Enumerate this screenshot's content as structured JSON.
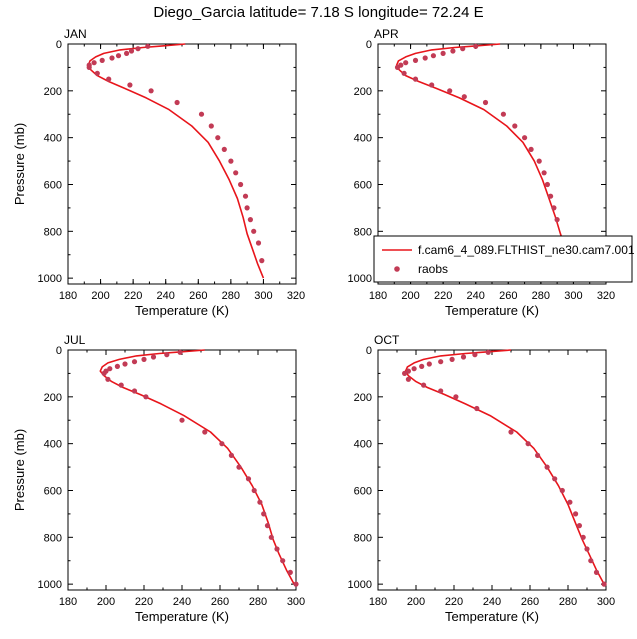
{
  "title": "Diego_Garcia  latitude= 7.18 S longitude= 72.24 E",
  "legend": {
    "model_label": "f.cam6_4_089.FLTHIST_ne30.cam7.001",
    "obs_label": "raobs"
  },
  "colors": {
    "model": "#e8151b",
    "obs": "#c23b55"
  },
  "chart_data": [
    {
      "type": "line",
      "panel": "JAN",
      "xlabel": "Temperature (K)",
      "ylabel": "Pressure (mb)",
      "xlim": [
        180,
        320
      ],
      "ylim": [
        1025,
        0
      ],
      "xticks": [
        180,
        200,
        220,
        240,
        260,
        280,
        300,
        320
      ],
      "yticks": [
        0,
        200,
        400,
        600,
        800,
        1000
      ],
      "series": [
        {
          "name": "f.cam6_4_089.FLTHIST_ne30.cam7.001",
          "style": "line",
          "x": [
            252,
            238,
            226,
            212,
            202,
            197,
            193.5,
            192.5,
            194,
            198,
            205,
            215,
            228,
            242,
            256,
            266,
            273,
            279,
            284,
            287.5,
            290,
            293,
            296.5,
            300
          ],
          "y": [
            0,
            8,
            15,
            25,
            40,
            55,
            72,
            90,
            110,
            135,
            160,
            190,
            230,
            280,
            350,
            420,
            500,
            580,
            660,
            740,
            810,
            870,
            940,
            1000
          ]
        },
        {
          "name": "raobs",
          "style": "markers",
          "x": [
            229,
            223,
            219,
            216,
            211,
            207,
            201,
            196,
            193,
            193,
            198,
            205,
            218,
            231,
            247,
            262,
            268,
            272,
            276,
            280,
            283,
            286,
            289,
            290,
            292,
            294,
            297,
            299
          ],
          "y": [
            10,
            20,
            30,
            40,
            50,
            60,
            70,
            80,
            90,
            100,
            125,
            150,
            175,
            200,
            250,
            300,
            350,
            400,
            450,
            500,
            550,
            600,
            650,
            700,
            750,
            800,
            850,
            925
          ]
        }
      ]
    },
    {
      "type": "line",
      "panel": "APR",
      "xlabel": "Temperature (K)",
      "ylabel": "",
      "xlim": [
        180,
        320
      ],
      "ylim": [
        1025,
        0
      ],
      "xticks": [
        180,
        200,
        220,
        240,
        260,
        280,
        300,
        320
      ],
      "yticks": [
        0,
        200,
        400,
        600,
        800,
        1000
      ],
      "series": [
        {
          "name": "f.cam6_4_089.FLTHIST_ne30.cam7.001",
          "style": "line",
          "x": [
            255,
            240,
            227,
            213,
            203,
            197,
            192.5,
            191.5,
            193,
            197,
            205,
            216,
            230,
            245,
            259,
            269,
            276,
            281,
            285,
            289,
            292,
            295,
            298,
            301
          ],
          "y": [
            0,
            8,
            15,
            25,
            40,
            55,
            72,
            90,
            110,
            135,
            160,
            190,
            230,
            280,
            350,
            420,
            500,
            580,
            660,
            740,
            810,
            870,
            940,
            1000
          ]
        },
        {
          "name": "raobs",
          "style": "markers",
          "x": [
            240,
            232,
            226,
            220,
            214,
            209,
            203,
            197,
            194,
            192,
            196,
            203,
            213,
            224,
            233,
            246,
            257,
            264,
            270,
            274,
            279,
            282,
            284,
            286,
            288,
            290,
            293,
            297,
            301
          ],
          "y": [
            10,
            20,
            30,
            40,
            50,
            60,
            70,
            80,
            90,
            100,
            125,
            150,
            175,
            200,
            225,
            250,
            300,
            350,
            400,
            450,
            500,
            550,
            600,
            650,
            700,
            750,
            850,
            925,
            1000
          ]
        }
      ]
    },
    {
      "type": "line",
      "panel": "JUL",
      "xlabel": "Temperature (K)",
      "ylabel": "Pressure (mb)",
      "xlim": [
        180,
        300
      ],
      "ylim": [
        1025,
        0
      ],
      "xticks": [
        180,
        200,
        220,
        240,
        260,
        280,
        300
      ],
      "yticks": [
        0,
        200,
        400,
        600,
        800,
        1000
      ],
      "series": [
        {
          "name": "f.cam6_4_089.FLTHIST_ne30.cam7.001",
          "style": "line",
          "x": [
            252,
            239,
            228,
            216,
            207,
            201,
            198,
            197,
            199,
            203,
            209,
            218,
            229,
            241,
            255,
            264,
            271,
            277,
            282,
            285.5,
            288,
            291,
            295,
            299
          ],
          "y": [
            0,
            8,
            15,
            25,
            40,
            55,
            72,
            90,
            110,
            135,
            160,
            190,
            230,
            280,
            350,
            420,
            500,
            580,
            660,
            740,
            810,
            870,
            940,
            1000
          ]
        },
        {
          "name": "raobs",
          "style": "markers",
          "x": [
            239,
            232,
            225,
            220,
            215,
            210,
            206,
            202,
            200,
            199,
            201,
            208,
            215,
            221,
            240,
            252,
            261,
            266,
            270,
            275,
            278,
            281,
            283,
            285,
            287,
            290,
            293,
            297,
            300
          ],
          "y": [
            10,
            20,
            30,
            40,
            50,
            60,
            70,
            80,
            90,
            100,
            125,
            150,
            175,
            200,
            300,
            350,
            400,
            450,
            500,
            550,
            600,
            650,
            700,
            750,
            800,
            850,
            900,
            950,
            1000
          ]
        }
      ]
    },
    {
      "type": "line",
      "panel": "OCT",
      "xlabel": "Temperature (K)",
      "ylabel": "",
      "xlim": [
        180,
        300
      ],
      "ylim": [
        1025,
        0
      ],
      "xticks": [
        180,
        200,
        220,
        240,
        260,
        280,
        300
      ],
      "yticks": [
        0,
        200,
        400,
        600,
        800,
        1000
      ],
      "series": [
        {
          "name": "f.cam6_4_089.FLTHIST_ne30.cam7.001",
          "style": "line",
          "x": [
            250,
            237,
            226,
            213,
            204,
            199,
            195.5,
            194.5,
            196,
            200,
            206,
            215,
            226,
            239,
            253,
            262,
            269,
            275,
            280,
            284,
            287.5,
            291,
            295,
            299
          ],
          "y": [
            0,
            8,
            15,
            25,
            40,
            55,
            72,
            90,
            110,
            135,
            160,
            190,
            230,
            280,
            350,
            420,
            500,
            580,
            660,
            740,
            810,
            870,
            940,
            1000
          ]
        },
        {
          "name": "raobs",
          "style": "markers",
          "x": [
            238,
            231,
            225,
            219,
            213,
            207,
            203,
            199,
            196,
            194,
            196,
            204,
            213,
            221,
            232,
            250,
            259,
            264,
            269,
            273,
            277,
            281,
            284,
            286,
            288,
            290,
            292,
            295,
            299
          ],
          "y": [
            10,
            20,
            30,
            40,
            50,
            60,
            70,
            80,
            90,
            100,
            125,
            150,
            175,
            200,
            250,
            350,
            400,
            450,
            500,
            550,
            600,
            650,
            700,
            750,
            800,
            850,
            900,
            950,
            1000
          ]
        }
      ]
    }
  ]
}
